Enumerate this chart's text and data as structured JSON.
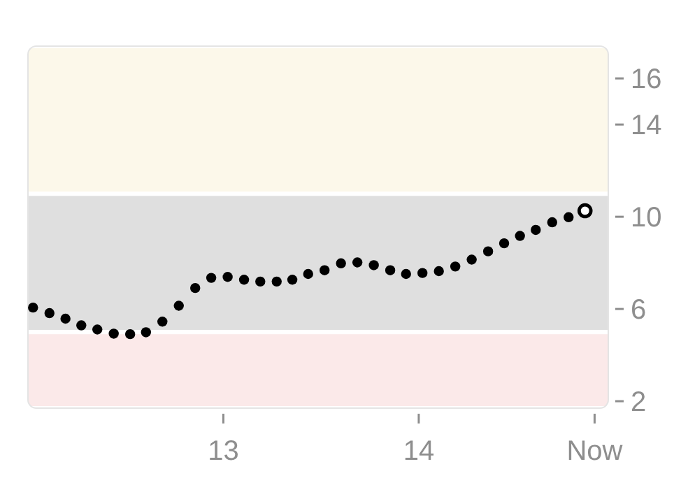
{
  "chart_data": {
    "type": "scatter",
    "marker": "circle",
    "grid": false,
    "x": [
      12.026,
      12.11,
      12.192,
      12.273,
      12.355,
      12.439,
      12.523,
      12.604,
      12.688,
      12.772,
      12.856,
      12.938,
      13.022,
      13.106,
      13.189,
      13.273,
      13.353,
      13.434,
      13.518,
      13.602,
      13.686,
      13.77,
      13.854,
      13.935,
      14.019,
      14.103,
      14.187,
      14.271,
      14.355,
      14.437,
      14.518,
      14.599,
      14.683,
      14.767,
      14.851
    ],
    "series": [
      {
        "color": "#000000",
        "values": [
          6.06,
          5.82,
          5.58,
          5.29,
          5.11,
          4.93,
          4.91,
          4.99,
          5.45,
          6.14,
          6.91,
          7.35,
          7.39,
          7.27,
          7.19,
          7.19,
          7.27,
          7.52,
          7.68,
          7.98,
          8.02,
          7.9,
          7.68,
          7.52,
          7.56,
          7.64,
          7.84,
          8.14,
          8.5,
          8.85,
          9.17,
          9.43,
          9.76,
          9.98,
          10.26
        ]
      }
    ],
    "xlim": [
      12,
      14.97
    ],
    "xticks": [
      13,
      14,
      {
        "value": 14.9,
        "label": "Now"
      }
    ],
    "ylim": [
      1.7,
      17.4
    ],
    "yticks": [
      2,
      6,
      10,
      14,
      16
    ],
    "bands": [
      {
        "axis": "y",
        "from": 1.7,
        "to": 5,
        "color": "#fbe9e9"
      },
      {
        "axis": "y",
        "from": 5,
        "to": 11,
        "color": "#dfdfdf"
      },
      {
        "axis": "y",
        "from": 11,
        "to": 17.4,
        "color": "#fcf8ea"
      }
    ]
  }
}
